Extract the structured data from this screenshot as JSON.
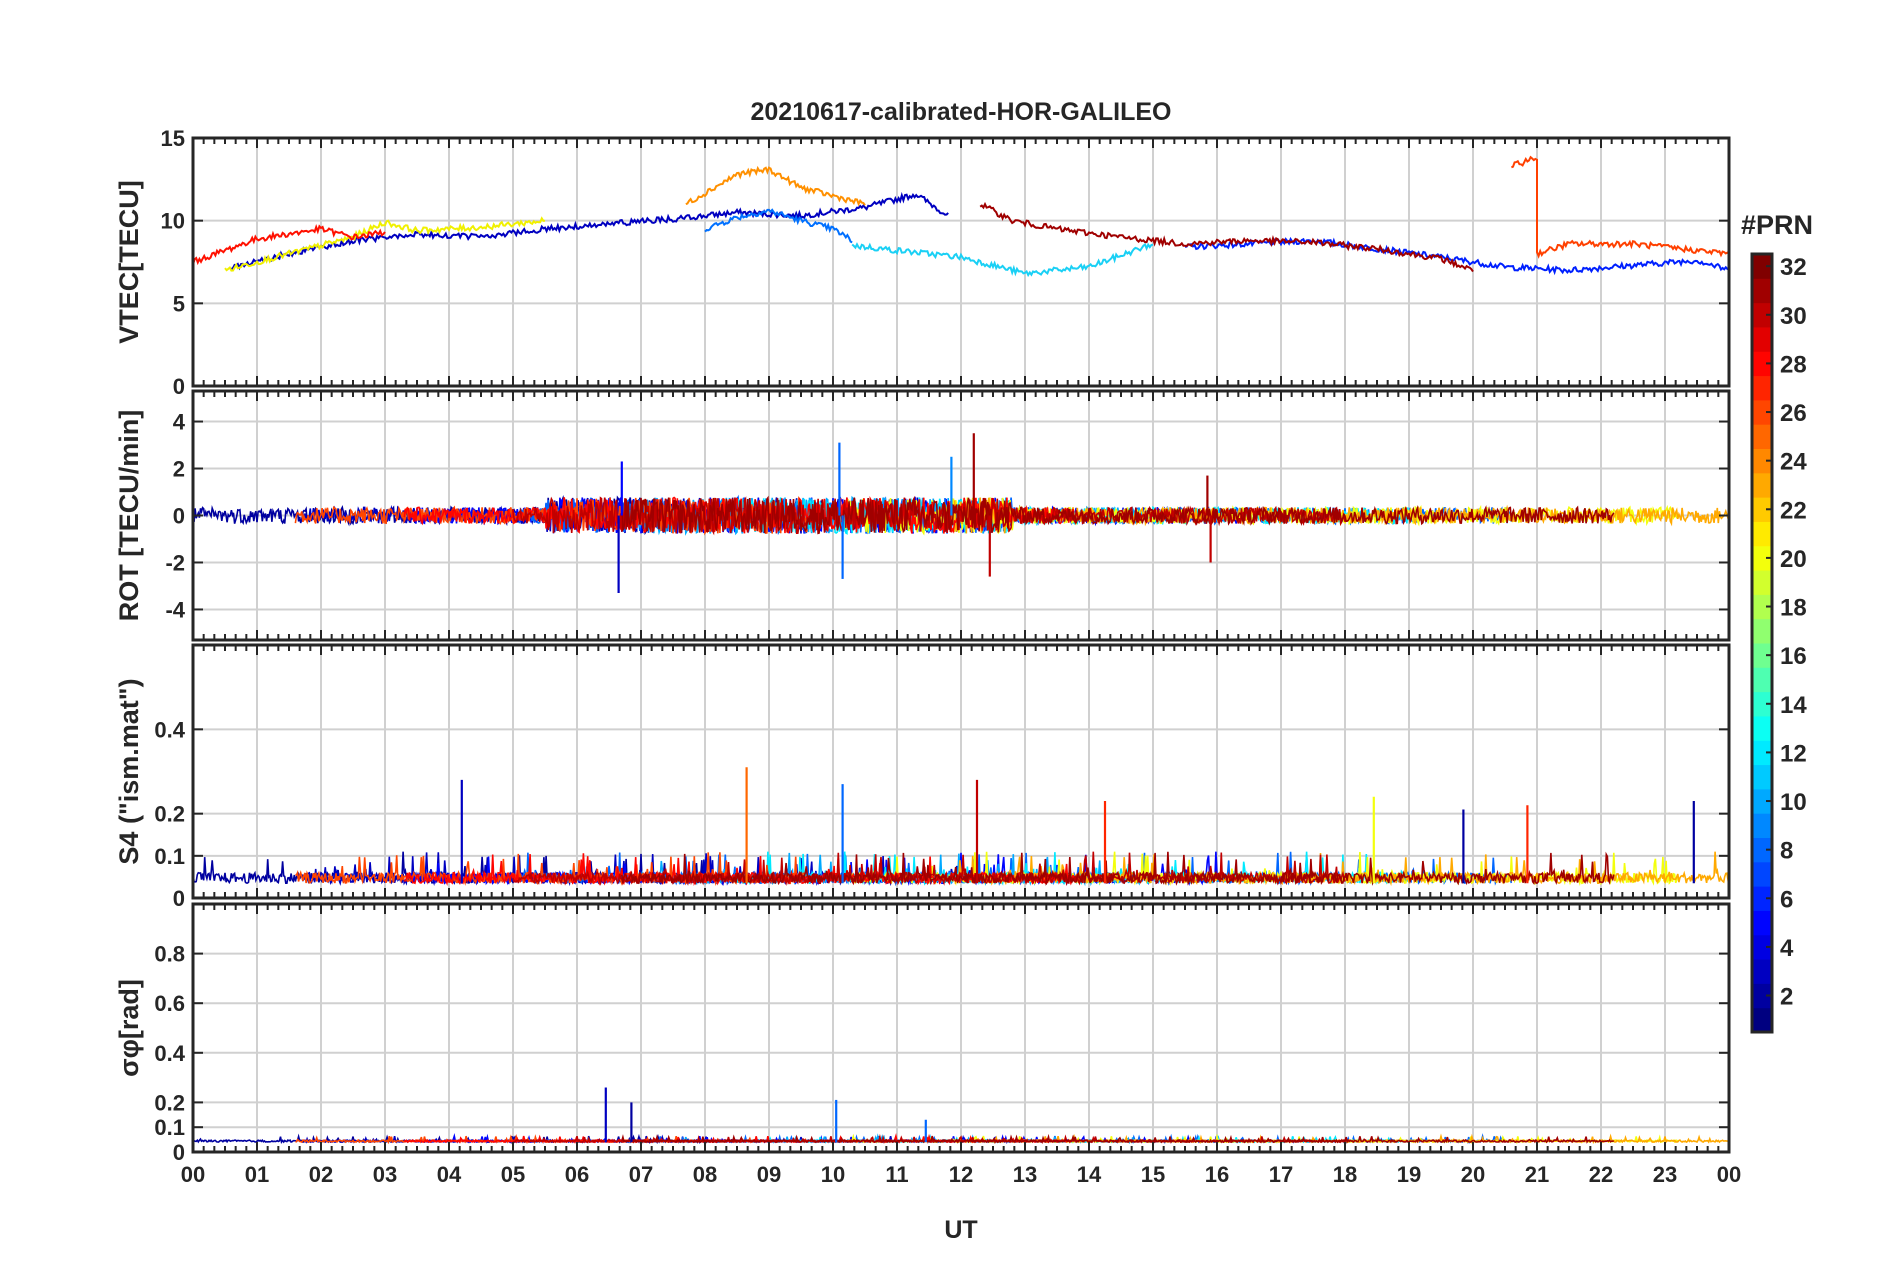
{
  "chart_data": {
    "title": "20210617-calibrated-HOR-GALILEO",
    "x_label": "UT",
    "x_ticks": [
      "00",
      "01",
      "02",
      "03",
      "04",
      "05",
      "06",
      "07",
      "08",
      "09",
      "10",
      "11",
      "12",
      "13",
      "14",
      "15",
      "16",
      "17",
      "18",
      "19",
      "20",
      "21",
      "22",
      "23",
      "00"
    ],
    "x_range_hours": [
      0,
      24
    ],
    "grid": true,
    "colorbar": {
      "title": "#PRN",
      "range": [
        1,
        32
      ],
      "ticks": [
        2,
        4,
        6,
        8,
        10,
        12,
        14,
        16,
        18,
        20,
        22,
        24,
        26,
        28,
        30,
        32
      ],
      "colormap": "jet",
      "placement": "right"
    },
    "panels": [
      {
        "type": "line",
        "ylabel": "VTEC[TECU]",
        "ylim": [
          0,
          15
        ],
        "yticks": [
          0,
          5,
          10,
          15
        ],
        "series": [
          {
            "prn": 2,
            "color": "#0000c0",
            "x": [
              0.6,
              1.5,
              2.5,
              3.5,
              4.5,
              5.5,
              6.5,
              7.5,
              8.5,
              9.5,
              10.5,
              11.3,
              11.8
            ],
            "y": [
              7.2,
              8.0,
              8.8,
              9.2,
              9.0,
              9.5,
              9.8,
              10.1,
              10.5,
              10.3,
              10.8,
              11.6,
              10.3
            ]
          },
          {
            "prn": 4,
            "color": "#0020ff",
            "x": [
              15.5,
              16.5,
              17.5,
              18.5,
              19.5,
              20.5,
              21.5,
              22.5,
              23.5,
              24.0
            ],
            "y": [
              8.4,
              8.6,
              8.8,
              8.3,
              7.8,
              7.2,
              7.0,
              7.3,
              7.6,
              7.0
            ]
          },
          {
            "prn": 7,
            "color": "#0070ff",
            "x": [
              8.0,
              8.5,
              9.0,
              9.5,
              10.0,
              10.3
            ],
            "y": [
              9.5,
              10.2,
              10.6,
              10.0,
              9.5,
              8.8
            ]
          },
          {
            "prn": 11,
            "color": "#1ad0f5",
            "x": [
              10.3,
              11.0,
              12.0,
              13.0,
              14.0,
              15.0
            ],
            "y": [
              8.5,
              8.2,
              7.8,
              6.8,
              7.2,
              8.6
            ]
          },
          {
            "prn": 20,
            "color": "#f0f000",
            "x": [
              0.5,
              1.5,
              2.5,
              3.0,
              3.5,
              4.5,
              5.5
            ],
            "y": [
              7.0,
              8.0,
              9.0,
              9.9,
              9.4,
              9.6,
              10.0
            ]
          },
          {
            "prn": 23,
            "color": "#ff9000",
            "x": [
              7.7,
              8.5,
              9.0,
              9.5,
              10.0,
              10.5
            ],
            "y": [
              11.0,
              12.8,
              13.1,
              12.0,
              11.5,
              11.0
            ]
          },
          {
            "prn": 26,
            "color": "#ff4000",
            "x": [
              20.6,
              21.0,
              21.0,
              21.5,
              22.5,
              23.5,
              24.0
            ],
            "y": [
              13.3,
              13.8,
              8.0,
              8.6,
              8.6,
              8.2,
              8.0
            ]
          },
          {
            "prn": 28,
            "color": "#ff1000",
            "x": [
              0.0,
              0.5,
              1.0,
              1.5,
              2.0,
              2.5,
              3.0
            ],
            "y": [
              7.5,
              8.2,
              8.9,
              9.2,
              9.5,
              9.0,
              9.3
            ]
          },
          {
            "prn": 31,
            "color": "#a00000",
            "x": [
              12.3,
              12.8,
              13.5,
              14.5,
              15.5,
              16.5,
              17.5,
              18.5,
              19.5,
              20.0
            ],
            "y": [
              11.0,
              10.0,
              9.5,
              9.0,
              8.6,
              8.8,
              8.7,
              8.3,
              7.7,
              7.0
            ]
          }
        ]
      },
      {
        "type": "line",
        "ylabel": "ROT [TECU/min]",
        "ylim": [
          -5.3,
          5.3
        ],
        "yticks": [
          -4,
          -2,
          0,
          2,
          4
        ],
        "peaks": [
          {
            "x": 6.65,
            "y": -3.3,
            "prn": 3
          },
          {
            "x": 6.7,
            "y": 2.3,
            "prn": 5
          },
          {
            "x": 10.1,
            "y": 3.1,
            "prn": 8
          },
          {
            "x": 10.15,
            "y": -2.7,
            "prn": 8
          },
          {
            "x": 11.85,
            "y": 2.5,
            "prn": 9
          },
          {
            "x": 12.2,
            "y": 3.5,
            "prn": 31
          },
          {
            "x": 12.45,
            "y": -2.6,
            "prn": 30
          },
          {
            "x": 15.85,
            "y": 1.7,
            "prn": 31
          },
          {
            "x": 15.9,
            "y": -2.0,
            "prn": 30
          }
        ]
      },
      {
        "type": "line",
        "ylabel": "S4 (\"ism.mat\")",
        "ylim": [
          0,
          0.6
        ],
        "yticks": [
          0,
          0.1,
          0.2,
          0.4
        ],
        "peaks": [
          {
            "x": 4.2,
            "y": 0.28,
            "prn": 3
          },
          {
            "x": 8.65,
            "y": 0.31,
            "prn": 25
          },
          {
            "x": 10.15,
            "y": 0.27,
            "prn": 8
          },
          {
            "x": 12.25,
            "y": 0.28,
            "prn": 30
          },
          {
            "x": 14.25,
            "y": 0.23,
            "prn": 27
          },
          {
            "x": 18.45,
            "y": 0.24,
            "prn": 20
          },
          {
            "x": 19.85,
            "y": 0.21,
            "prn": 2
          },
          {
            "x": 20.85,
            "y": 0.22,
            "prn": 27
          },
          {
            "x": 23.45,
            "y": 0.23,
            "prn": 2
          }
        ]
      },
      {
        "type": "line",
        "ylabel": "σφ[rad]",
        "ylim": [
          0,
          1
        ],
        "yticks": [
          0,
          0.1,
          0.2,
          0.4,
          0.6,
          0.8
        ],
        "peaks": [
          {
            "x": 6.45,
            "y": 0.26,
            "prn": 3
          },
          {
            "x": 6.85,
            "y": 0.2,
            "prn": 2
          },
          {
            "x": 10.05,
            "y": 0.21,
            "prn": 8
          },
          {
            "x": 11.45,
            "y": 0.13,
            "prn": 8
          }
        ]
      }
    ]
  }
}
